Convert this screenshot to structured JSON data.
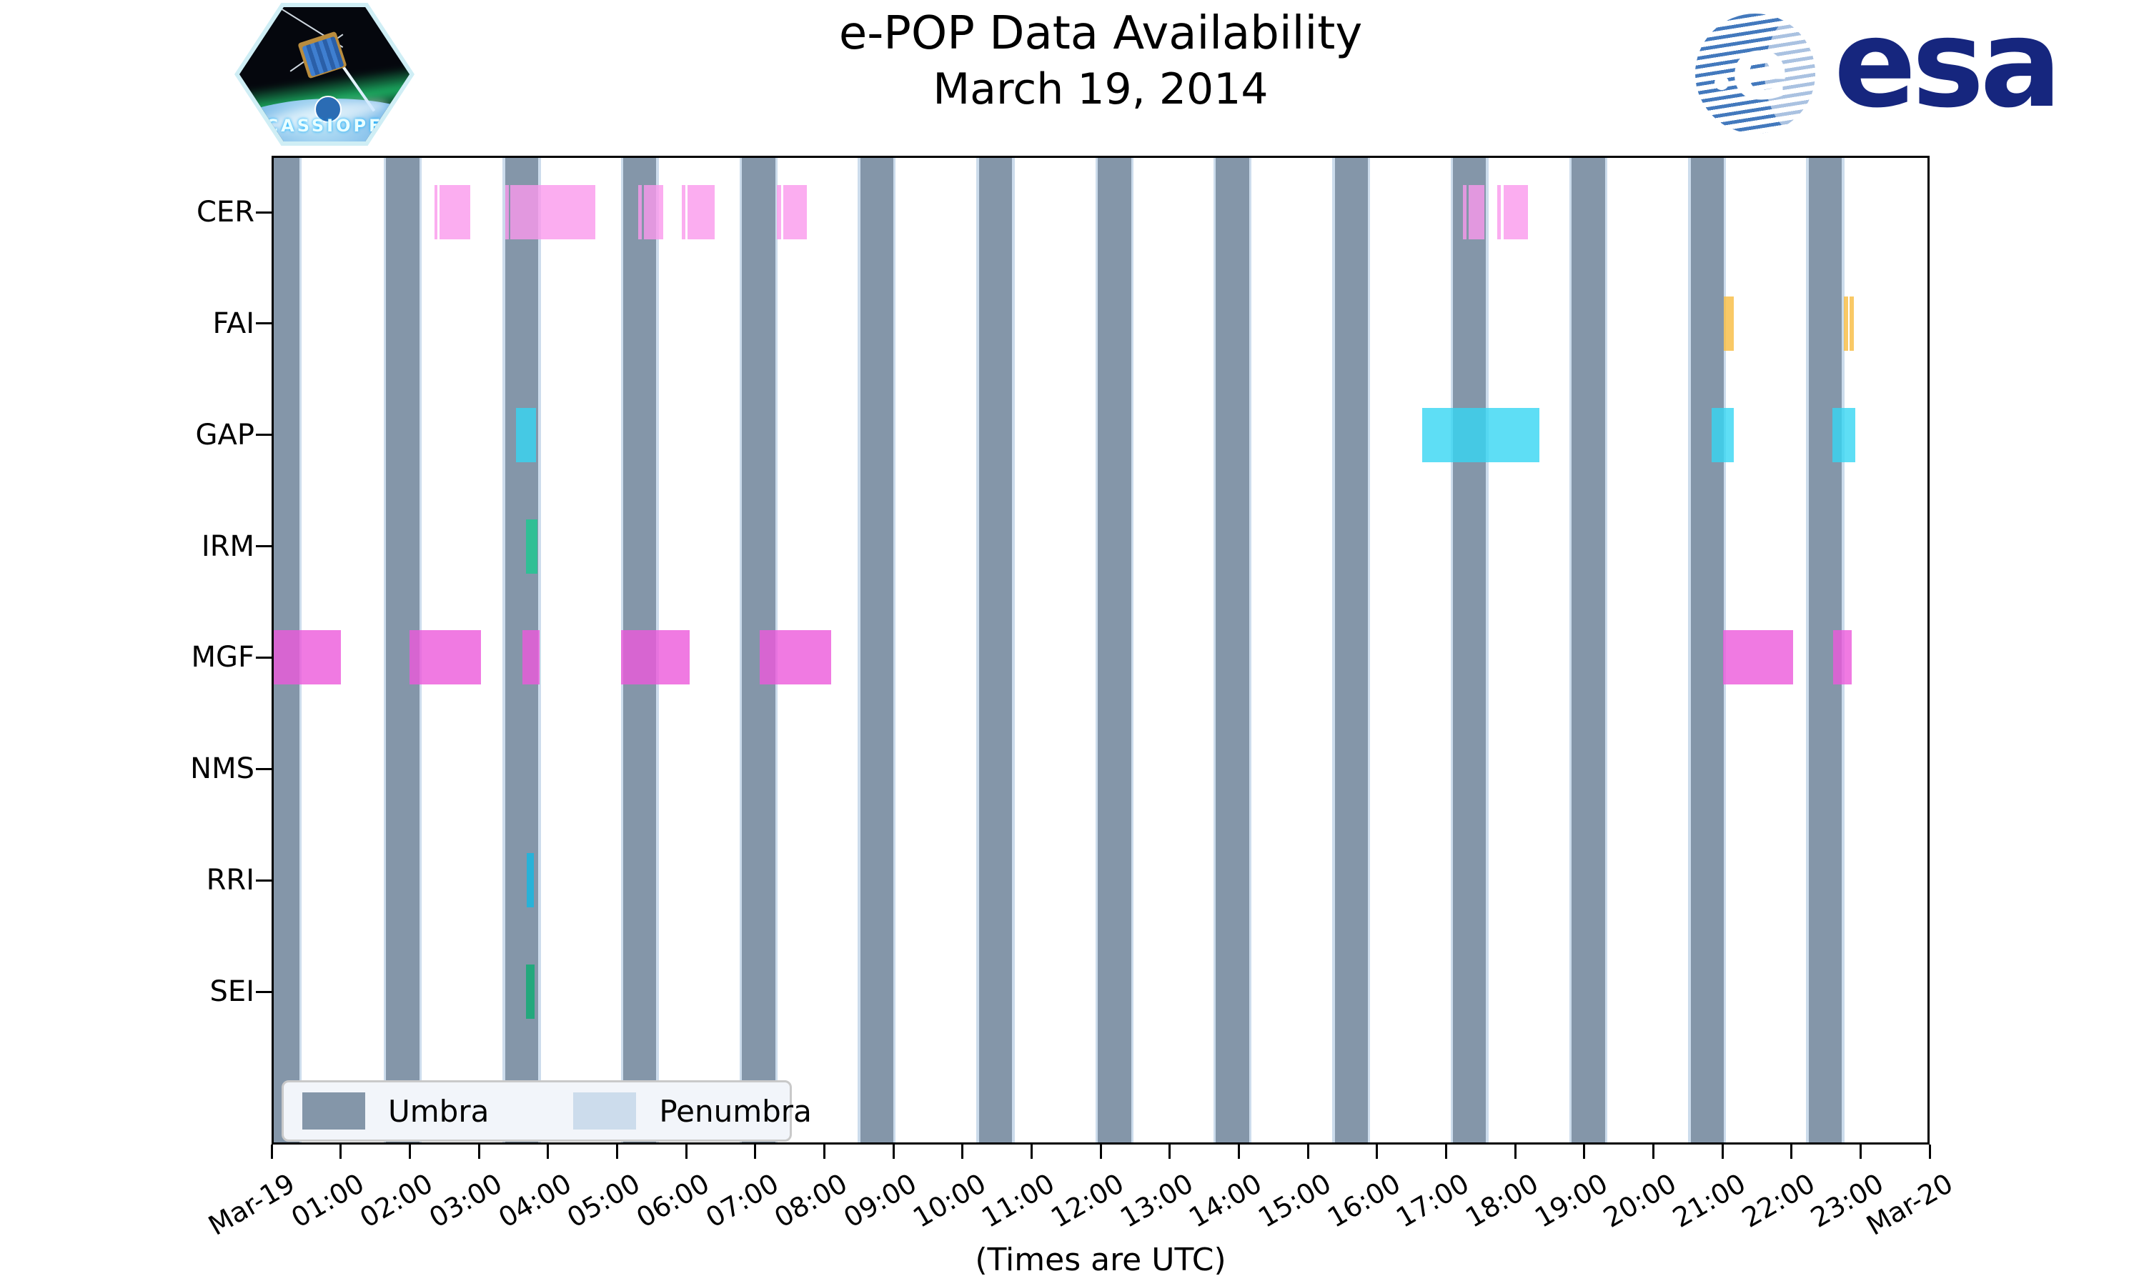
{
  "header": {
    "title_line1": "e-POP Data Availability",
    "title_line2": "March 19, 2014"
  },
  "logos": {
    "cassiope_text": "CASSIOPE",
    "esa_text": "esa"
  },
  "axis": {
    "xlabel": "(Times are UTC)"
  },
  "legend": {
    "items": [
      {
        "label": "Umbra",
        "color": "#8496a9"
      },
      {
        "label": "Penumbra",
        "color": "#ccdcec"
      }
    ]
  },
  "chart_data": {
    "type": "gantt-availability-timeline",
    "title": "e-POP Data Availability — March 19, 2014",
    "x_axis": {
      "start_hour": 0,
      "end_hour": 24,
      "unit": "hours UTC on 2014-03-19",
      "tick_labels": [
        "Mar-19",
        "01:00",
        "02:00",
        "03:00",
        "04:00",
        "05:00",
        "06:00",
        "07:00",
        "08:00",
        "09:00",
        "10:00",
        "11:00",
        "12:00",
        "13:00",
        "14:00",
        "15:00",
        "16:00",
        "17:00",
        "18:00",
        "19:00",
        "20:00",
        "21:00",
        "22:00",
        "23:00",
        "Mar-20"
      ]
    },
    "y_categories": [
      "CER",
      "FAI",
      "GAP",
      "IRM",
      "MGF",
      "NMS",
      "RRI",
      "SEI"
    ],
    "umbra": {
      "label": "Umbra",
      "color": "#8496a9",
      "intervals_hours": [
        [
          0,
          0.4
        ],
        [
          1.66,
          2.14
        ],
        [
          3.38,
          3.86
        ],
        [
          5.09,
          5.57
        ],
        [
          6.81,
          7.29
        ],
        [
          8.52,
          9.0
        ],
        [
          10.24,
          10.72
        ],
        [
          11.96,
          12.44
        ],
        [
          13.67,
          14.15
        ],
        [
          15.39,
          15.87
        ],
        [
          17.1,
          17.58
        ],
        [
          18.82,
          19.3
        ],
        [
          20.54,
          21.02
        ],
        [
          22.25,
          22.73
        ]
      ]
    },
    "penumbra": {
      "label": "Penumbra",
      "color": "#ccdcec",
      "edge_width_hours": 0.035
    },
    "series": [
      {
        "name": "CER",
        "color": "#fa98ec",
        "intervals_hours": [
          [
            2.36,
            2.4
          ],
          [
            2.43,
            2.88
          ],
          [
            3.38,
            3.43
          ],
          [
            3.46,
            4.69
          ],
          [
            5.31,
            5.36
          ],
          [
            5.39,
            5.67
          ],
          [
            5.94,
            5.99
          ],
          [
            6.02,
            6.41
          ],
          [
            7.31,
            7.38
          ],
          [
            7.41,
            7.75
          ],
          [
            17.24,
            17.3
          ],
          [
            17.33,
            17.56
          ],
          [
            17.74,
            17.79
          ],
          [
            17.83,
            18.19
          ]
        ]
      },
      {
        "name": "FAI",
        "color": "#f7bb40",
        "intervals_hours": [
          [
            21.02,
            21.17
          ],
          [
            22.76,
            22.82
          ],
          [
            22.84,
            22.9
          ]
        ]
      },
      {
        "name": "GAP",
        "color": "#36d6f3",
        "intervals_hours": [
          [
            3.54,
            3.83
          ],
          [
            16.65,
            18.35
          ],
          [
            20.84,
            21.17
          ],
          [
            22.59,
            22.92
          ]
        ]
      },
      {
        "name": "IRM",
        "color": "#1ac990",
        "intervals_hours": [
          [
            3.68,
            3.85
          ]
        ]
      },
      {
        "name": "MGF",
        "color": "#ec59db",
        "intervals_hours": [
          [
            0.0,
            1.0
          ],
          [
            2.0,
            3.03
          ],
          [
            3.63,
            3.88
          ],
          [
            5.06,
            6.05
          ],
          [
            7.07,
            8.1
          ],
          [
            21.01,
            22.02
          ],
          [
            22.6,
            22.87
          ]
        ]
      },
      {
        "name": "NMS",
        "color": "#bbbbbb",
        "intervals_hours": []
      },
      {
        "name": "RRI",
        "color": "#11b9e4",
        "intervals_hours": [
          [
            3.69,
            3.8
          ]
        ]
      },
      {
        "name": "SEI",
        "color": "#0bac71",
        "intervals_hours": [
          [
            3.68,
            3.81
          ]
        ]
      }
    ]
  }
}
